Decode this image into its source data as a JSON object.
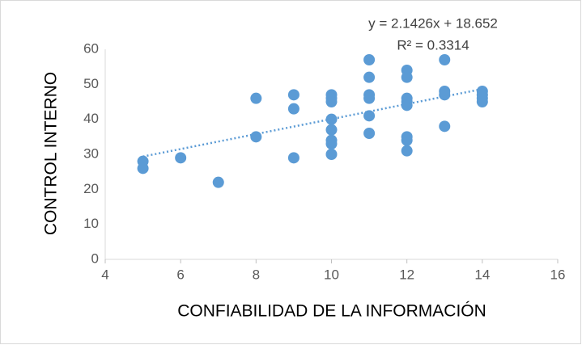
{
  "chart_data": {
    "type": "scatter",
    "x_label": "CONFIABILIDAD DE LA INFORMACIÓN",
    "y_label": "CONTROL INTERNO",
    "x": [
      5,
      5,
      6,
      7,
      8,
      8,
      9,
      9,
      9,
      10,
      10,
      10,
      10,
      10,
      10,
      10,
      10,
      11,
      11,
      11,
      11,
      11,
      11,
      12,
      12,
      12,
      12,
      12,
      12,
      12,
      12,
      13,
      13,
      13,
      13,
      14,
      14,
      14,
      14
    ],
    "values": [
      28,
      26,
      29,
      22,
      46,
      35,
      47,
      43,
      29,
      47,
      46,
      45,
      40,
      37,
      34,
      33,
      30,
      57,
      52,
      47,
      46,
      41,
      36,
      54,
      52,
      46,
      45,
      44,
      35,
      34,
      31,
      57,
      48,
      47,
      38,
      48,
      47,
      46,
      45
    ],
    "color": "#5b9bd5",
    "xlim": [
      4,
      16
    ],
    "xticks": [
      4,
      6,
      8,
      10,
      12,
      14,
      16
    ],
    "ylim": [
      0,
      60
    ],
    "yticks": [
      0,
      10,
      20,
      30,
      40,
      50,
      60
    ],
    "grid": false,
    "trendline": {
      "slope": 2.1426,
      "intercept": 18.652,
      "label": "y = 2.1426x + 18.652",
      "r2_label": "R² = 0.3314"
    }
  }
}
